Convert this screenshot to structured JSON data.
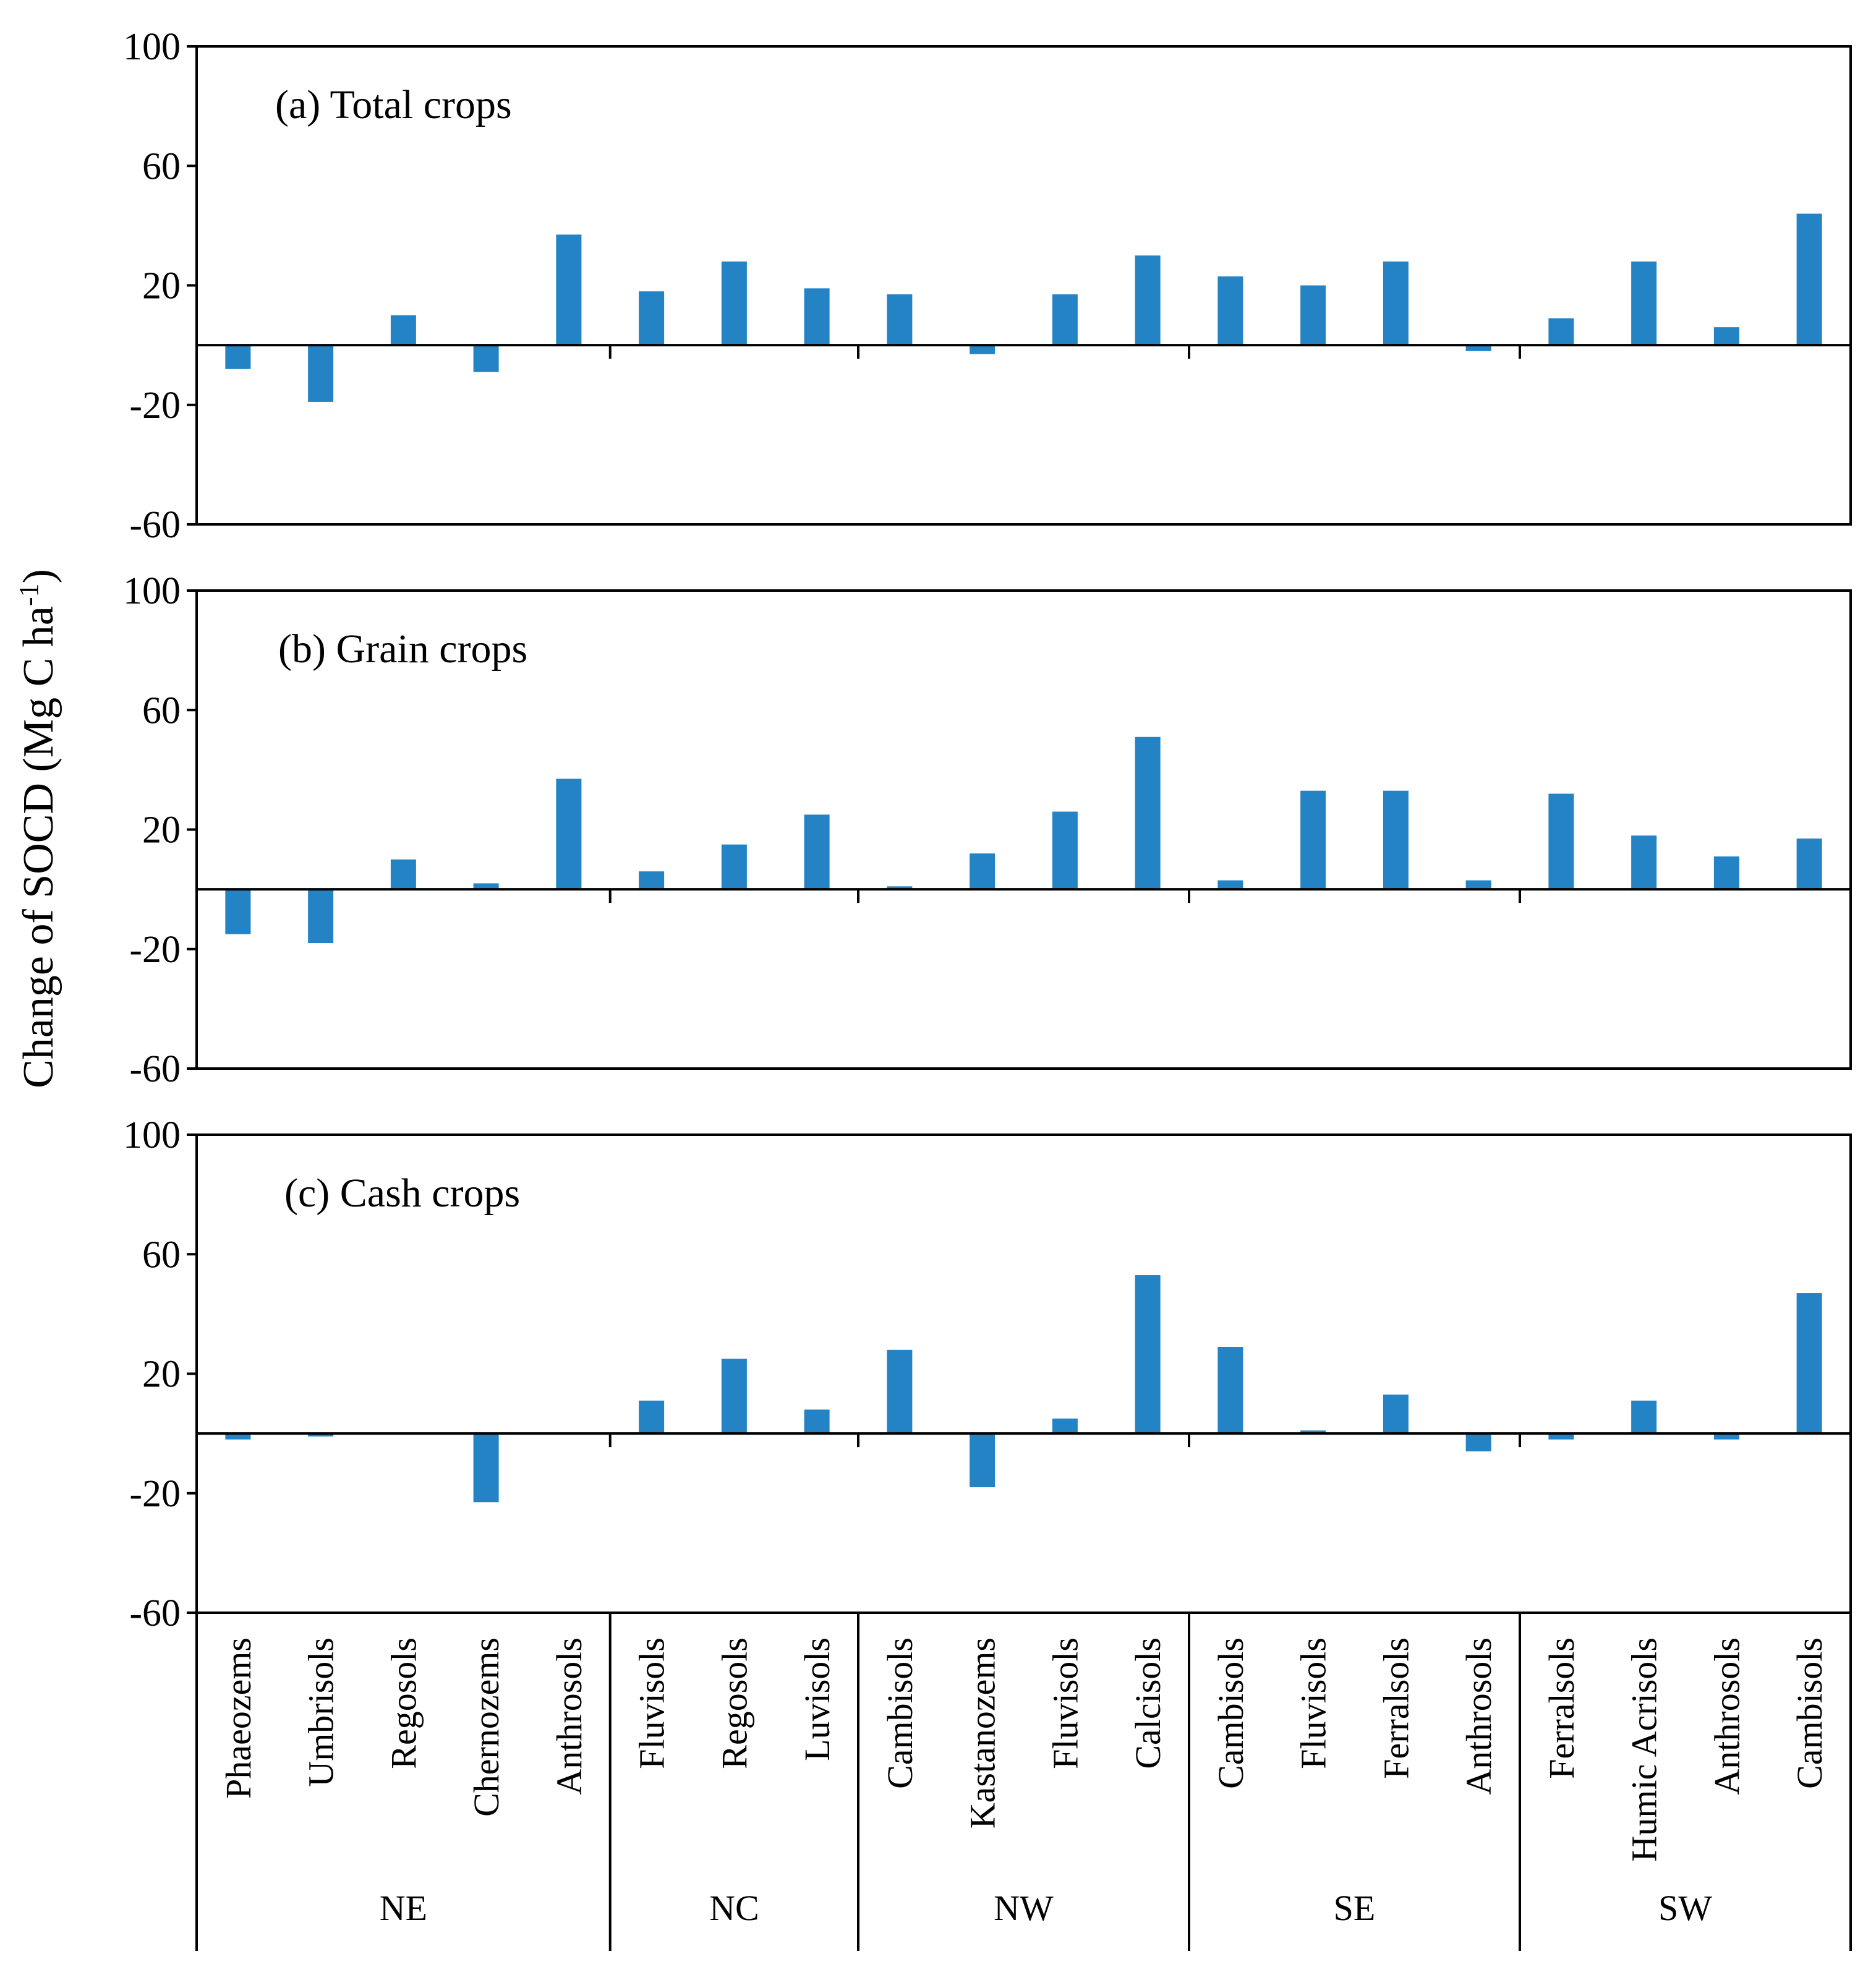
{
  "chart_data": {
    "type": "bar",
    "ylabel": "Change of SOCD (Mg C ha",
    "ylabel_sup": "-1",
    "ylabel_close": ")",
    "ylim": [
      -60,
      100
    ],
    "yticks": [
      100,
      60,
      20,
      -20,
      -60
    ],
    "bar_color": "#2483c5",
    "regions": [
      {
        "name": "NE",
        "count": 5
      },
      {
        "name": "NC",
        "count": 3
      },
      {
        "name": "NW",
        "count": 4
      },
      {
        "name": "SE",
        "count": 4
      },
      {
        "name": "SW",
        "count": 4
      }
    ],
    "categories": [
      "Phaeozems",
      "Umbrisols",
      "Regosols",
      "Chernozems",
      "Anthrosols",
      "Fluvisols",
      "Regosols",
      "Luvisols",
      "Cambisols",
      "Kastanozems",
      "Fluvisols",
      "Calcisols",
      "Cambisols",
      "Fluvisols",
      "Ferralsols",
      "Anthrosols",
      "Ferralsols",
      "Humic Acrisols",
      "Anthrosols",
      "Cambisols"
    ],
    "series": [
      {
        "name": "(a) Total crops",
        "values": [
          -8,
          -19,
          10,
          -9,
          37,
          18,
          28,
          19,
          17,
          -3,
          17,
          30,
          23,
          20,
          28,
          -2,
          9,
          28,
          6,
          44
        ]
      },
      {
        "name": "(b) Grain crops",
        "values": [
          -15,
          -18,
          10,
          2,
          37,
          6,
          15,
          25,
          1,
          12,
          26,
          51,
          3,
          33,
          33,
          3,
          32,
          18,
          11,
          17
        ]
      },
      {
        "name": "(c) Cash crops",
        "values": [
          -2,
          -1,
          0,
          -23,
          0,
          11,
          25,
          8,
          28,
          -18,
          5,
          53,
          29,
          1,
          13,
          -6,
          -2,
          11,
          -2,
          47
        ]
      }
    ]
  }
}
